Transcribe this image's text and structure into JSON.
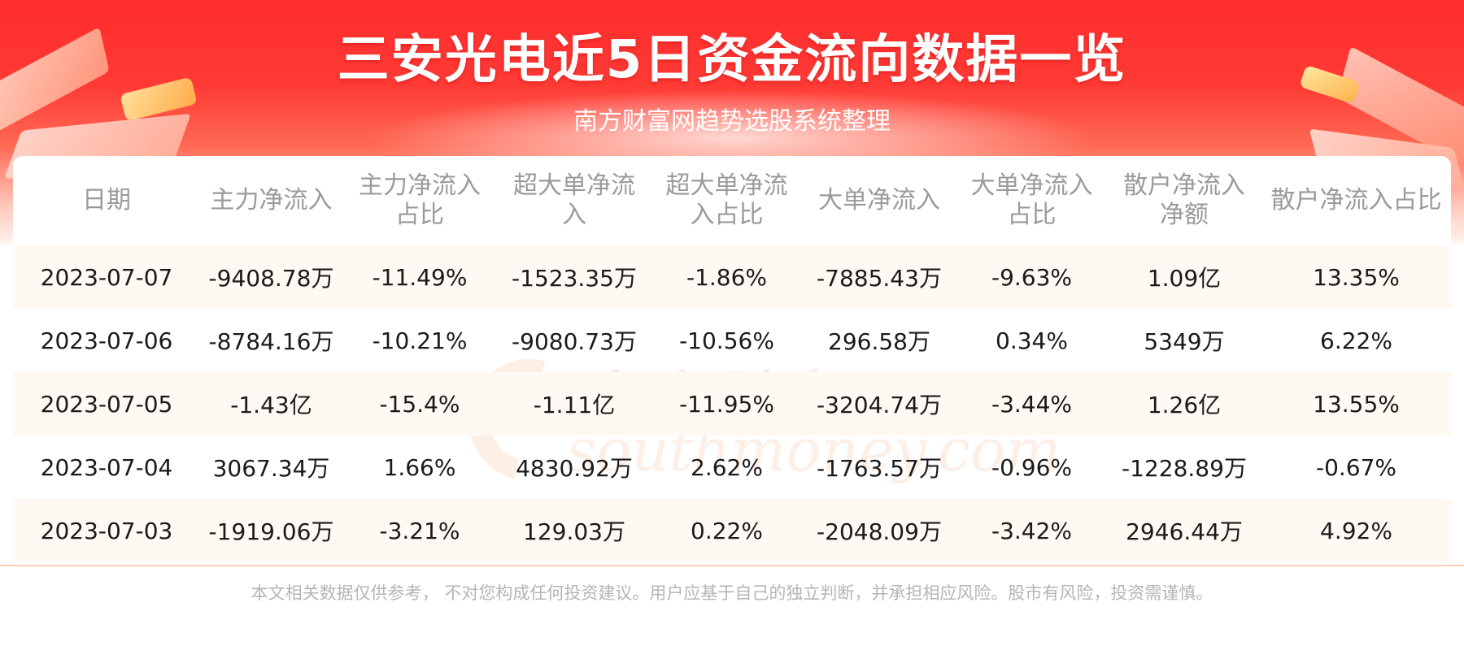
{
  "header": {
    "title": "三安光电近5日资金流向数据一览",
    "subtitle": "南方财富网趋势选股系统整理"
  },
  "watermark": {
    "cn": "南方财富网",
    "en": "southmoney.com"
  },
  "table": {
    "columns": [
      "日期",
      "主力净流入",
      "主力净流入占比",
      "超大单净流入",
      "超大单净流入占比",
      "大单净流入",
      "大单净流入占比",
      "散户净流入净额",
      "散户净流入占比"
    ],
    "rows": [
      [
        "2023-07-07",
        "-9408.78万",
        "-11.49%",
        "-1523.35万",
        "-1.86%",
        "-7885.43万",
        "-9.63%",
        "1.09亿",
        "13.35%"
      ],
      [
        "2023-07-06",
        "-8784.16万",
        "-10.21%",
        "-9080.73万",
        "-10.56%",
        "296.58万",
        "0.34%",
        "5349万",
        "6.22%"
      ],
      [
        "2023-07-05",
        "-1.43亿",
        "-15.4%",
        "-1.11亿",
        "-11.95%",
        "-3204.74万",
        "-3.44%",
        "1.26亿",
        "13.55%"
      ],
      [
        "2023-07-04",
        "3067.34万",
        "1.66%",
        "4830.92万",
        "2.62%",
        "-1763.57万",
        "-0.96%",
        "-1228.89万",
        "-0.67%"
      ],
      [
        "2023-07-03",
        "-1919.06万",
        "-3.21%",
        "129.03万",
        "0.22%",
        "-2048.09万",
        "-3.42%",
        "2946.44万",
        "4.92%"
      ]
    ]
  },
  "footer": {
    "disclaimer": "本文相关数据仅供参考， 不对您构成任何投资建议。用户应基于自己的独立判断，并承担相应风险。股市有风险，投资需谨慎。"
  }
}
